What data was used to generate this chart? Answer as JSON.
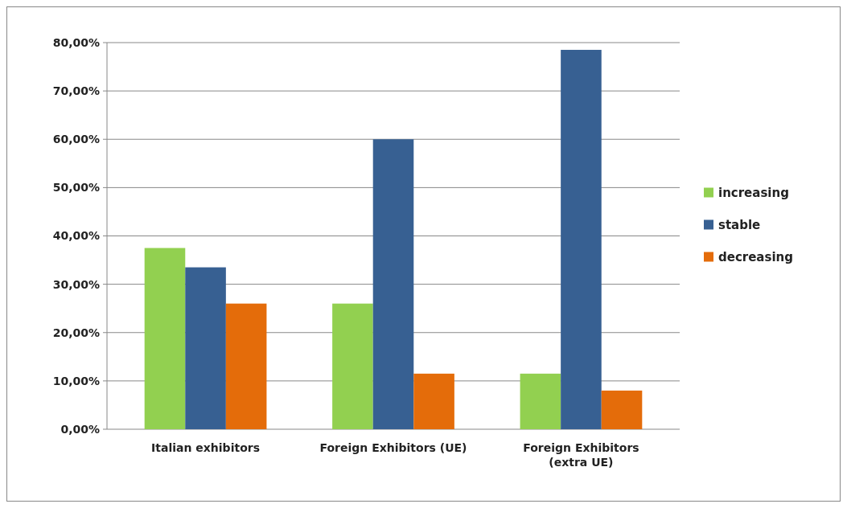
{
  "chart_data": {
    "type": "bar",
    "categories": [
      "Italian exhibitors",
      "Foreign Exhibitors (UE)",
      "Foreign Exhibitors (extra UE)"
    ],
    "series": [
      {
        "name": "increasing",
        "color": "#92d050",
        "values": [
          37.5,
          26,
          11.5
        ]
      },
      {
        "name": "stable",
        "color": "#376092",
        "values": [
          33.5,
          60,
          78.5
        ]
      },
      {
        "name": "decreasing",
        "color": "#e46c0a",
        "values": [
          26,
          11.5,
          8
        ]
      }
    ],
    "ylim": [
      0,
      80
    ],
    "yticks": [
      {
        "value": 0,
        "label": "0,00%"
      },
      {
        "value": 10,
        "label": "10,00%"
      },
      {
        "value": 20,
        "label": "20,00%"
      },
      {
        "value": 30,
        "label": "30,00%"
      },
      {
        "value": 40,
        "label": "40,00%"
      },
      {
        "value": 50,
        "label": "50,00%"
      },
      {
        "value": 60,
        "label": "60,00%"
      },
      {
        "value": 70,
        "label": "70,00%"
      },
      {
        "value": 80,
        "label": "80,00%"
      }
    ],
    "grid": true,
    "legend": "right"
  }
}
